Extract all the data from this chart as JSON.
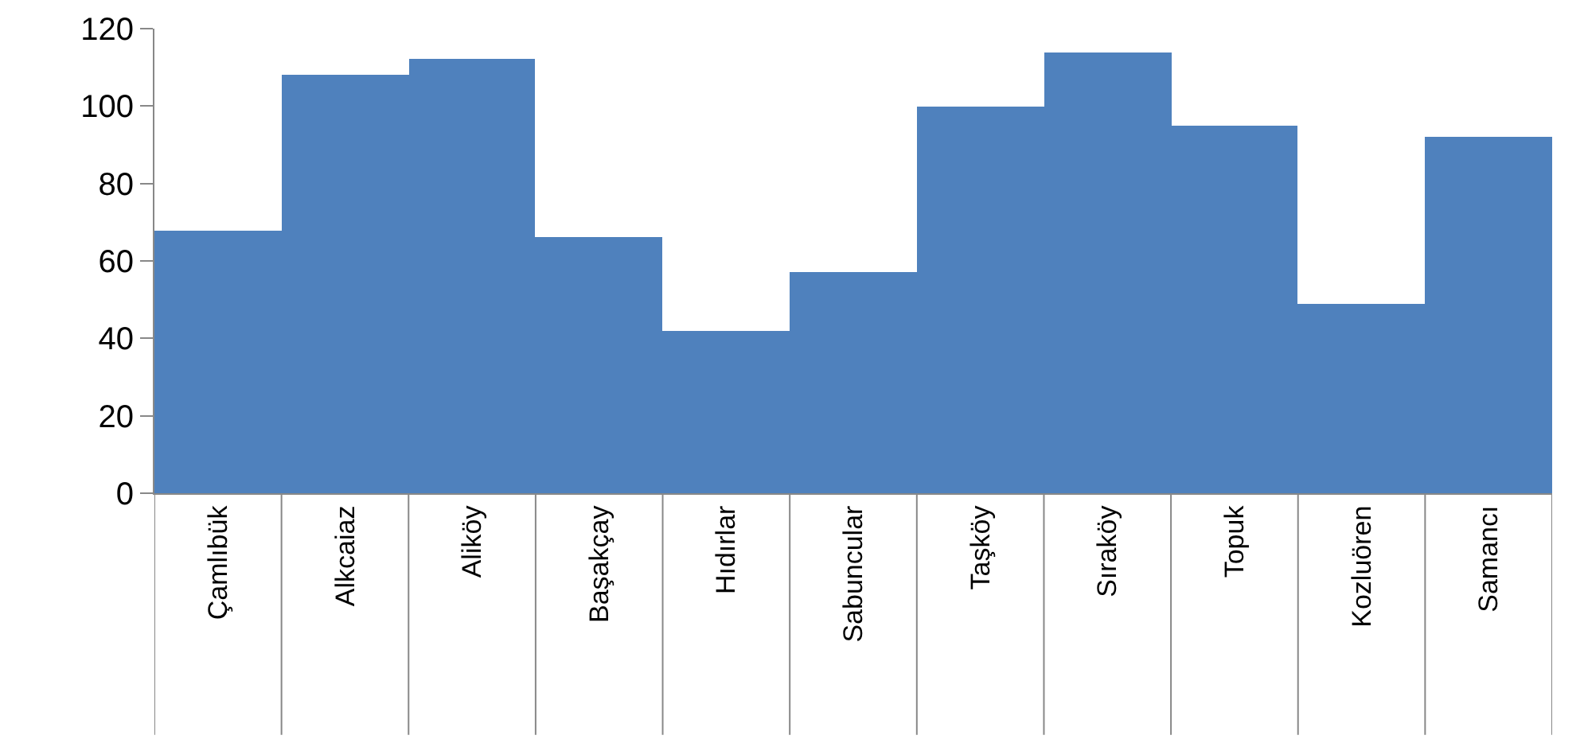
{
  "chart_data": {
    "type": "bar",
    "categories": [
      "Çamlıbük",
      "Alkcaiaz",
      "Aliköy",
      "Başakçay",
      "Hıdırlar",
      "Sabuncular",
      "Taşköy",
      "Sıraköy",
      "Topuk",
      "Kozluören",
      "Samancı"
    ],
    "values": [
      68,
      108,
      112,
      66,
      42,
      57,
      100,
      114,
      95,
      49,
      92
    ],
    "color": "#4f81bd",
    "ylim": [
      0,
      120
    ],
    "yticks": [
      0,
      20,
      40,
      60,
      80,
      100,
      120
    ],
    "grid": false
  }
}
